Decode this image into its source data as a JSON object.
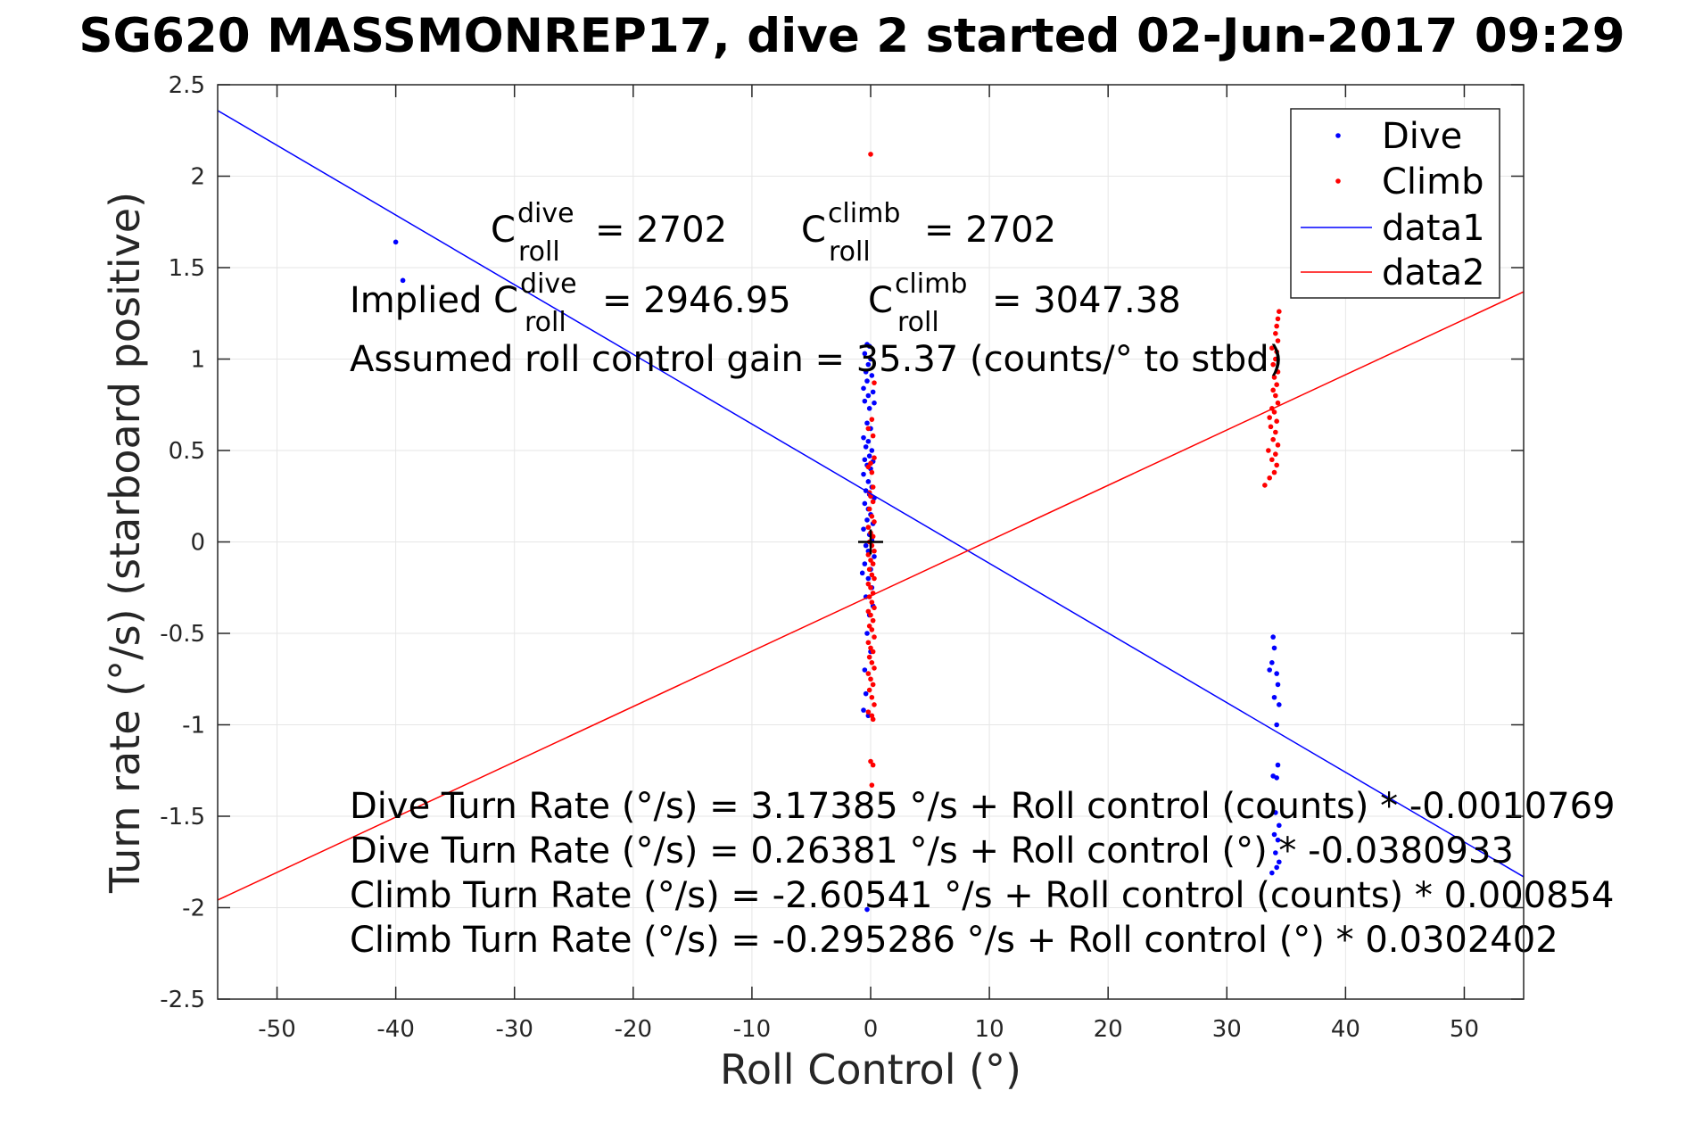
{
  "chart_data": {
    "type": "scatter",
    "title": "SG620 MASSMONREP17, dive 2 started 02-Jun-2017 09:29",
    "xlabel": "Roll Control (°)",
    "ylabel": "Turn rate (°/s) (starboard positive)",
    "xlim": [
      -55,
      55
    ],
    "ylim": [
      -2.5,
      2.5
    ],
    "xticks": [
      -50,
      -40,
      -30,
      -20,
      -10,
      0,
      10,
      20,
      30,
      40,
      50
    ],
    "yticks": [
      -2.5,
      -2,
      -1.5,
      -1,
      -0.5,
      0,
      0.5,
      1,
      1.5,
      2,
      2.5
    ],
    "grid": true,
    "legend_position": "top-right",
    "colors": {
      "dive": "#0000ff",
      "climb": "#ff0000",
      "axes": "#262626",
      "grid": "#e6e6e6"
    },
    "legend": [
      "Dive",
      "Climb",
      "data1",
      "data2"
    ],
    "series": [
      {
        "name": "Dive",
        "kind": "points",
        "color": "#0000ff",
        "points": [
          [
            -40.0,
            1.64
          ],
          [
            -39.4,
            1.43
          ],
          [
            -0.3,
            1.08
          ],
          [
            -0.1,
            1.07
          ],
          [
            -0.5,
            1.03
          ],
          [
            0.0,
            1.0
          ],
          [
            -0.2,
            0.97
          ],
          [
            -0.4,
            0.93
          ],
          [
            0.1,
            0.91
          ],
          [
            -0.3,
            0.88
          ],
          [
            -0.6,
            0.84
          ],
          [
            0.2,
            0.82
          ],
          [
            -0.2,
            0.8
          ],
          [
            -0.5,
            0.77
          ],
          [
            0.3,
            0.76
          ],
          [
            -0.1,
            0.73
          ],
          [
            -0.3,
            0.65
          ],
          [
            0.0,
            0.62
          ],
          [
            -0.6,
            0.57
          ],
          [
            -0.2,
            0.55
          ],
          [
            -0.4,
            0.52
          ],
          [
            0.1,
            0.5
          ],
          [
            -0.1,
            0.47
          ],
          [
            -0.5,
            0.45
          ],
          [
            0.2,
            0.44
          ],
          [
            -0.3,
            0.42
          ],
          [
            0.0,
            0.4
          ],
          [
            -0.6,
            0.37
          ],
          [
            -0.2,
            0.33
          ],
          [
            0.1,
            0.3
          ],
          [
            -0.4,
            0.28
          ],
          [
            -0.1,
            0.26
          ],
          [
            0.3,
            0.24
          ],
          [
            -0.5,
            0.21
          ],
          [
            -0.2,
            0.18
          ],
          [
            0.0,
            0.15
          ],
          [
            -0.3,
            0.12
          ],
          [
            0.2,
            0.1
          ],
          [
            -0.6,
            0.07
          ],
          [
            -0.1,
            0.04
          ],
          [
            0.1,
            0.01
          ],
          [
            -0.4,
            -0.02
          ],
          [
            -0.2,
            -0.05
          ],
          [
            0.3,
            -0.08
          ],
          [
            -0.5,
            -0.12
          ],
          [
            0.0,
            -0.15
          ],
          [
            -0.7,
            -0.17
          ],
          [
            -0.2,
            -0.2
          ],
          [
            0.1,
            -0.25
          ],
          [
            -0.4,
            -0.3
          ],
          [
            0.2,
            -0.35
          ],
          [
            -0.1,
            -0.4
          ],
          [
            -0.3,
            -0.5
          ],
          [
            0.0,
            -0.6
          ],
          [
            -0.5,
            -0.7
          ],
          [
            -0.4,
            -0.83
          ],
          [
            -0.6,
            -0.92
          ],
          [
            -0.2,
            -0.95
          ],
          [
            -0.3,
            -2.01
          ],
          [
            33.6,
            -0.7
          ],
          [
            33.9,
            -0.52
          ],
          [
            34.0,
            -0.58
          ],
          [
            33.8,
            -0.66
          ],
          [
            34.2,
            -0.72
          ],
          [
            34.3,
            -0.78
          ],
          [
            34.0,
            -0.85
          ],
          [
            34.4,
            -0.89
          ],
          [
            34.2,
            -1.0
          ],
          [
            33.9,
            -1.28
          ],
          [
            34.2,
            -1.29
          ],
          [
            34.3,
            -1.22
          ],
          [
            34.1,
            -1.48
          ],
          [
            34.4,
            -1.55
          ],
          [
            34.0,
            -1.6
          ],
          [
            34.3,
            -1.63
          ],
          [
            34.1,
            -1.7
          ],
          [
            34.4,
            -1.75
          ],
          [
            34.2,
            -1.78
          ],
          [
            33.8,
            -1.81
          ]
        ]
      },
      {
        "name": "Climb",
        "kind": "points",
        "color": "#ff0000",
        "points": [
          [
            0.0,
            2.12
          ],
          [
            0.3,
            0.87
          ],
          [
            0.1,
            0.67
          ],
          [
            -0.2,
            0.62
          ],
          [
            0.2,
            0.58
          ],
          [
            0.3,
            0.46
          ],
          [
            0.0,
            0.43
          ],
          [
            -0.2,
            0.41
          ],
          [
            0.1,
            0.38
          ],
          [
            0.2,
            0.3
          ],
          [
            -0.1,
            0.27
          ],
          [
            0.0,
            0.25
          ],
          [
            0.2,
            0.22
          ],
          [
            -0.1,
            0.18
          ],
          [
            0.1,
            0.14
          ],
          [
            0.3,
            0.11
          ],
          [
            -0.2,
            0.08
          ],
          [
            0.0,
            0.05
          ],
          [
            0.2,
            0.03
          ],
          [
            -0.1,
            0.0
          ],
          [
            0.1,
            -0.02
          ],
          [
            0.3,
            -0.05
          ],
          [
            -0.2,
            -0.07
          ],
          [
            0.0,
            -0.1
          ],
          [
            0.2,
            -0.12
          ],
          [
            -0.1,
            -0.15
          ],
          [
            0.1,
            -0.18
          ],
          [
            0.3,
            -0.2
          ],
          [
            -0.2,
            -0.23
          ],
          [
            0.0,
            -0.25
          ],
          [
            0.2,
            -0.28
          ],
          [
            -0.1,
            -0.3
          ],
          [
            0.1,
            -0.33
          ],
          [
            0.3,
            -0.36
          ],
          [
            -0.2,
            -0.38
          ],
          [
            0.0,
            -0.4
          ],
          [
            0.2,
            -0.43
          ],
          [
            -0.1,
            -0.46
          ],
          [
            0.1,
            -0.48
          ],
          [
            0.3,
            -0.52
          ],
          [
            -0.2,
            -0.55
          ],
          [
            0.0,
            -0.58
          ],
          [
            0.2,
            -0.6
          ],
          [
            -0.1,
            -0.63
          ],
          [
            0.1,
            -0.66
          ],
          [
            0.3,
            -0.69
          ],
          [
            -0.2,
            -0.72
          ],
          [
            0.0,
            -0.75
          ],
          [
            0.2,
            -0.78
          ],
          [
            -0.1,
            -0.81
          ],
          [
            0.1,
            -0.85
          ],
          [
            0.3,
            -0.89
          ],
          [
            -0.2,
            -0.93
          ],
          [
            0.1,
            -0.95
          ],
          [
            0.2,
            -0.97
          ],
          [
            0.0,
            -1.2
          ],
          [
            0.2,
            -1.22
          ],
          [
            0.1,
            -1.33
          ],
          [
            33.2,
            0.31
          ],
          [
            33.6,
            0.35
          ],
          [
            34.0,
            0.38
          ],
          [
            34.2,
            0.42
          ],
          [
            33.8,
            0.45
          ],
          [
            34.1,
            0.48
          ],
          [
            33.5,
            0.5
          ],
          [
            34.3,
            0.53
          ],
          [
            33.9,
            0.56
          ],
          [
            34.1,
            0.6
          ],
          [
            33.7,
            0.63
          ],
          [
            34.2,
            0.66
          ],
          [
            33.6,
            0.68
          ],
          [
            34.0,
            0.71
          ],
          [
            33.8,
            0.73
          ],
          [
            34.3,
            0.76
          ],
          [
            34.1,
            0.8
          ],
          [
            33.9,
            0.83
          ],
          [
            34.2,
            0.86
          ],
          [
            34.0,
            0.9
          ],
          [
            34.3,
            0.93
          ],
          [
            33.9,
            0.97
          ],
          [
            34.1,
            1.0
          ],
          [
            34.2,
            1.04
          ],
          [
            33.8,
            1.06
          ],
          [
            34.3,
            1.1
          ],
          [
            34.1,
            1.14
          ],
          [
            34.2,
            1.18
          ],
          [
            34.3,
            1.22
          ],
          [
            34.4,
            1.26
          ]
        ]
      },
      {
        "name": "data1",
        "kind": "line",
        "color": "#0000ff",
        "intercept": 0.26381,
        "slope": -0.0380933,
        "x": [
          -55,
          55
        ]
      },
      {
        "name": "data2",
        "kind": "line",
        "color": "#ff0000",
        "intercept": -0.295286,
        "slope": 0.0302402,
        "x": [
          -55,
          55
        ]
      }
    ],
    "marker": {
      "type": "plus",
      "x": 0,
      "y": 0,
      "color": "#000000"
    },
    "annotations": {
      "c_roll_dive": {
        "base": "C",
        "sup": "dive",
        "sub": "roll",
        "value": "= 2702"
      },
      "c_roll_climb": {
        "base": "C",
        "sup": "climb",
        "sub": "roll",
        "value": "= 2702"
      },
      "implied_prefix": "Implied C",
      "implied_dive": {
        "sup": "dive",
        "sub": "roll",
        "value": "= 2946.95"
      },
      "implied_climb": {
        "base": "C",
        "sup": "climb",
        "sub": "roll",
        "value": "= 3047.38"
      },
      "assumed_gain": "Assumed roll control gain = 35.37 (counts/° to stbd)",
      "fit_lines": [
        "Dive Turn Rate (°/s) = 3.17385 °/s + Roll control (counts) * -0.0010769",
        "Dive Turn Rate (°/s) = 0.26381 °/s + Roll control (°) * -0.0380933",
        "Climb Turn Rate (°/s) = -2.60541 °/s + Roll control (counts) * 0.000854",
        "Climb Turn Rate (°/s) = -0.295286 °/s + Roll control (°) * 0.0302402"
      ]
    }
  }
}
